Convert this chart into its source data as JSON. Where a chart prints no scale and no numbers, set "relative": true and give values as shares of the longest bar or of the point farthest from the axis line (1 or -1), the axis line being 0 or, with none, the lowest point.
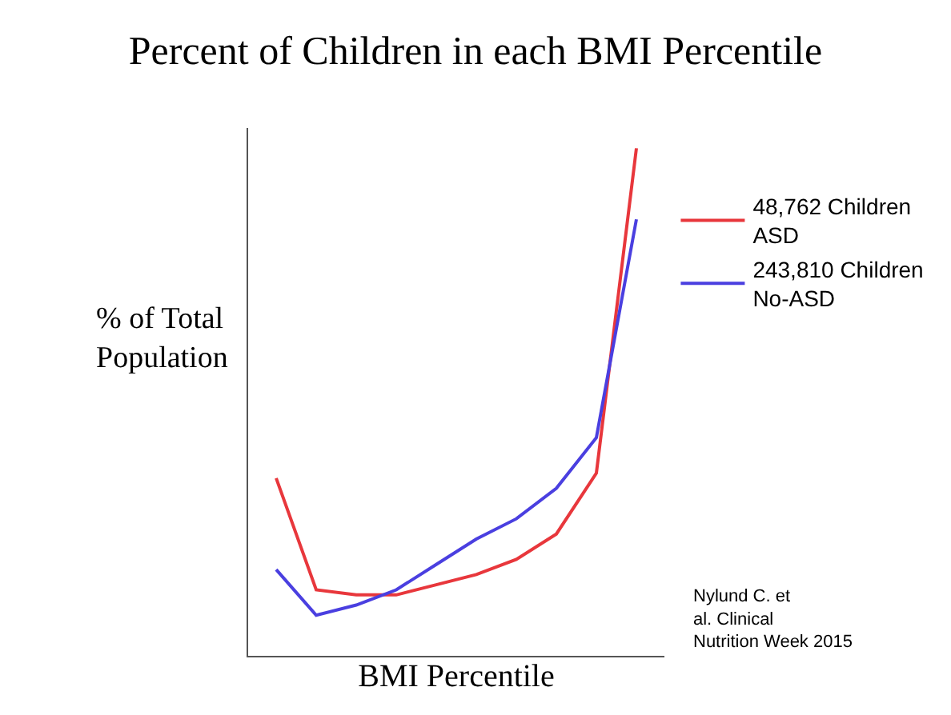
{
  "chart_data": {
    "type": "line",
    "title": "Percent of Children in each BMI Percentile",
    "xlabel": "BMI Percentile",
    "ylabel": "% of Total Population",
    "annotations": [
      "Nylund C. et al. Clinical Nutrition Week 2015"
    ],
    "relative": true,
    "legend": "right",
    "marker": "none",
    "line_style": "solid",
    "categories": [
      null,
      null,
      null,
      null,
      null,
      null,
      null,
      null,
      null,
      null
    ],
    "series": [
      {
        "name": "48,762 Children ASD",
        "color": "#e8373c",
        "values": [
          0.35,
          0.13,
          0.12,
          0.12,
          0.14,
          0.16,
          0.19,
          0.24,
          0.36,
          1
        ]
      },
      {
        "name": "243,810 Children No-ASD",
        "color": "#4a3fe0",
        "values": [
          0.17,
          0.08,
          0.1,
          0.13,
          0.18,
          0.23,
          0.27,
          0.33,
          0.43,
          0.86
        ]
      }
    ]
  }
}
